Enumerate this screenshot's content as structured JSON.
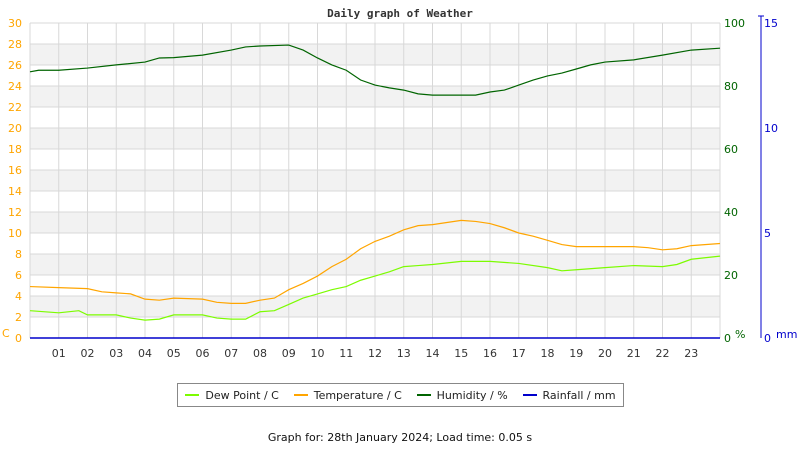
{
  "chart_data": {
    "type": "line",
    "title": "Daily graph of Weather",
    "x_ticks": [
      "01",
      "02",
      "03",
      "04",
      "05",
      "06",
      "07",
      "08",
      "09",
      "10",
      "11",
      "12",
      "13",
      "14",
      "15",
      "16",
      "17",
      "18",
      "19",
      "20",
      "21",
      "22",
      "23"
    ],
    "xlim": [
      0,
      24
    ],
    "axes": {
      "left": {
        "unit": "C",
        "ylim": [
          0,
          30
        ],
        "ticks": [
          0,
          2,
          4,
          6,
          8,
          10,
          12,
          14,
          16,
          18,
          20,
          22,
          24,
          26,
          28,
          30
        ],
        "color": "#ffa500"
      },
      "right1": {
        "unit": "%",
        "ylim": [
          0,
          100
        ],
        "ticks": [
          0,
          20,
          40,
          60,
          80,
          100
        ],
        "color": "#006400"
      },
      "right2": {
        "unit": "mm",
        "ylim": [
          0,
          15
        ],
        "ticks": [
          0,
          5,
          10,
          15
        ],
        "color": "#0000cc"
      }
    },
    "grid": true,
    "legend_position": "bottom",
    "series": [
      {
        "name": "Dew Point / C",
        "axis": "left",
        "color": "#7cfc00",
        "x": [
          0,
          1,
          1.7,
          2,
          3,
          3.5,
          4,
          4.5,
          5,
          6,
          6.5,
          7,
          7.5,
          8,
          8.5,
          9,
          9.5,
          10,
          10.5,
          11,
          11.5,
          12,
          12.5,
          13,
          13.5,
          14,
          15,
          16,
          17,
          18,
          18.5,
          19,
          20,
          21,
          22,
          22.5,
          23,
          24
        ],
        "y": [
          2.6,
          2.4,
          2.6,
          2.2,
          2.2,
          1.9,
          1.7,
          1.8,
          2.2,
          2.2,
          1.9,
          1.8,
          1.8,
          2.5,
          2.6,
          3.2,
          3.8,
          4.2,
          4.6,
          4.9,
          5.5,
          5.9,
          6.3,
          6.8,
          6.9,
          7.0,
          7.3,
          7.3,
          7.1,
          6.7,
          6.4,
          6.5,
          6.7,
          6.9,
          6.8,
          7.0,
          7.5,
          7.8
        ]
      },
      {
        "name": "Temperature / C",
        "axis": "left",
        "color": "#ffa500",
        "x": [
          0,
          1,
          2,
          2.5,
          3,
          3.5,
          4,
          4.5,
          5,
          6,
          6.5,
          7,
          7.5,
          8,
          8.5,
          9,
          9.5,
          10,
          10.5,
          11,
          11.5,
          12,
          12.5,
          13,
          13.5,
          14,
          14.5,
          15,
          15.5,
          16,
          16.5,
          17,
          17.5,
          18,
          18.5,
          19,
          20,
          21,
          21.5,
          22,
          22.5,
          23,
          24
        ],
        "y": [
          4.9,
          4.8,
          4.7,
          4.4,
          4.3,
          4.2,
          3.7,
          3.6,
          3.8,
          3.7,
          3.4,
          3.3,
          3.3,
          3.6,
          3.8,
          4.6,
          5.2,
          5.9,
          6.8,
          7.5,
          8.5,
          9.2,
          9.7,
          10.3,
          10.7,
          10.8,
          11.0,
          11.2,
          11.1,
          10.9,
          10.5,
          10.0,
          9.7,
          9.3,
          8.9,
          8.7,
          8.7,
          8.7,
          8.6,
          8.4,
          8.5,
          8.8,
          9.0
        ]
      },
      {
        "name": "Humidity / %",
        "axis": "right1",
        "color": "#006400",
        "x": [
          0,
          0.3,
          1,
          2,
          3,
          4,
          4.5,
          5,
          6,
          7,
          7.5,
          8,
          9,
          9.5,
          10,
          10.5,
          11,
          11.5,
          12,
          12.5,
          13,
          13.5,
          14,
          15,
          15.5,
          16,
          16.5,
          17,
          17.5,
          18,
          18.5,
          19,
          19.5,
          20,
          21,
          22,
          23,
          24
        ],
        "y": [
          84.5,
          85,
          85,
          85.7,
          86.7,
          87.6,
          88.9,
          89,
          89.8,
          91.4,
          92.4,
          92.7,
          93,
          91.4,
          88.9,
          86.7,
          85,
          81.9,
          80.3,
          79.4,
          78.7,
          77.5,
          77.1,
          77.1,
          77.1,
          78.1,
          78.7,
          80.3,
          81.9,
          83.2,
          84.1,
          85.4,
          86.7,
          87.6,
          88.3,
          89.8,
          91.4,
          92
        ]
      },
      {
        "name": "Rainfall / mm",
        "axis": "right2",
        "color": "#0000cc",
        "x": [
          0,
          24
        ],
        "y": [
          0,
          0
        ]
      }
    ]
  },
  "footer": "Graph for: 28th January 2024; Load time: 0.05 s"
}
